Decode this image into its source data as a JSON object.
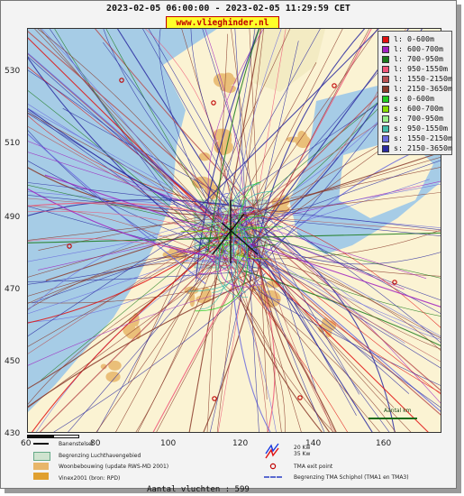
{
  "header": {
    "time_range": "2023-02-05 06:00:00 - 2023-02-05 11:29:59 CET",
    "site_badge": "www.vlieghinder.nl"
  },
  "axes": {
    "y_ticks": [
      "530",
      "510",
      "490",
      "470",
      "450",
      "430"
    ],
    "x_ticks": [
      "60",
      "80",
      "100",
      "120",
      "140",
      "160"
    ]
  },
  "legend": [
    {
      "label": "l: 0-600m",
      "color": "#e01010"
    },
    {
      "label": "l: 600-700m",
      "color": "#a020c0"
    },
    {
      "label": "l: 700-950m",
      "color": "#1a7a1a"
    },
    {
      "label": "l: 950-1550m",
      "color": "#ee5577"
    },
    {
      "label": "l: 1550-2150m",
      "color": "#b85050"
    },
    {
      "label": "l: 2150-3650m",
      "color": "#8a3a2a"
    },
    {
      "label": "s: 0-600m",
      "color": "#22cc22"
    },
    {
      "label": "s: 600-700m",
      "color": "#88dd00"
    },
    {
      "label": "s: 700-950m",
      "color": "#99ee88"
    },
    {
      "label": "s: 950-1550m",
      "color": "#44bbaa"
    },
    {
      "label": "s: 1550-2150m",
      "color": "#6a6add"
    },
    {
      "label": "s: 2150-3650m",
      "color": "#2a2aa0"
    }
  ],
  "map_legend": {
    "runway": "Banenstelsel",
    "airport_boundary": "Begrenzing Luchthavengebied",
    "housing": "Woonbebouwing (update RWS-MD 2001)",
    "vinex": "Vinex2001 (bron: RPD)",
    "wind_20": "20 Kw",
    "wind_35": "35 Kw",
    "tma_exit": "TMA exit point",
    "tma_boundary": "Begrenzing TMA Schiphol  (TMA1 en TMA3)",
    "scale": "Aantal km"
  },
  "footer": {
    "flight_count": "Aantal vluchten : 599"
  }
}
